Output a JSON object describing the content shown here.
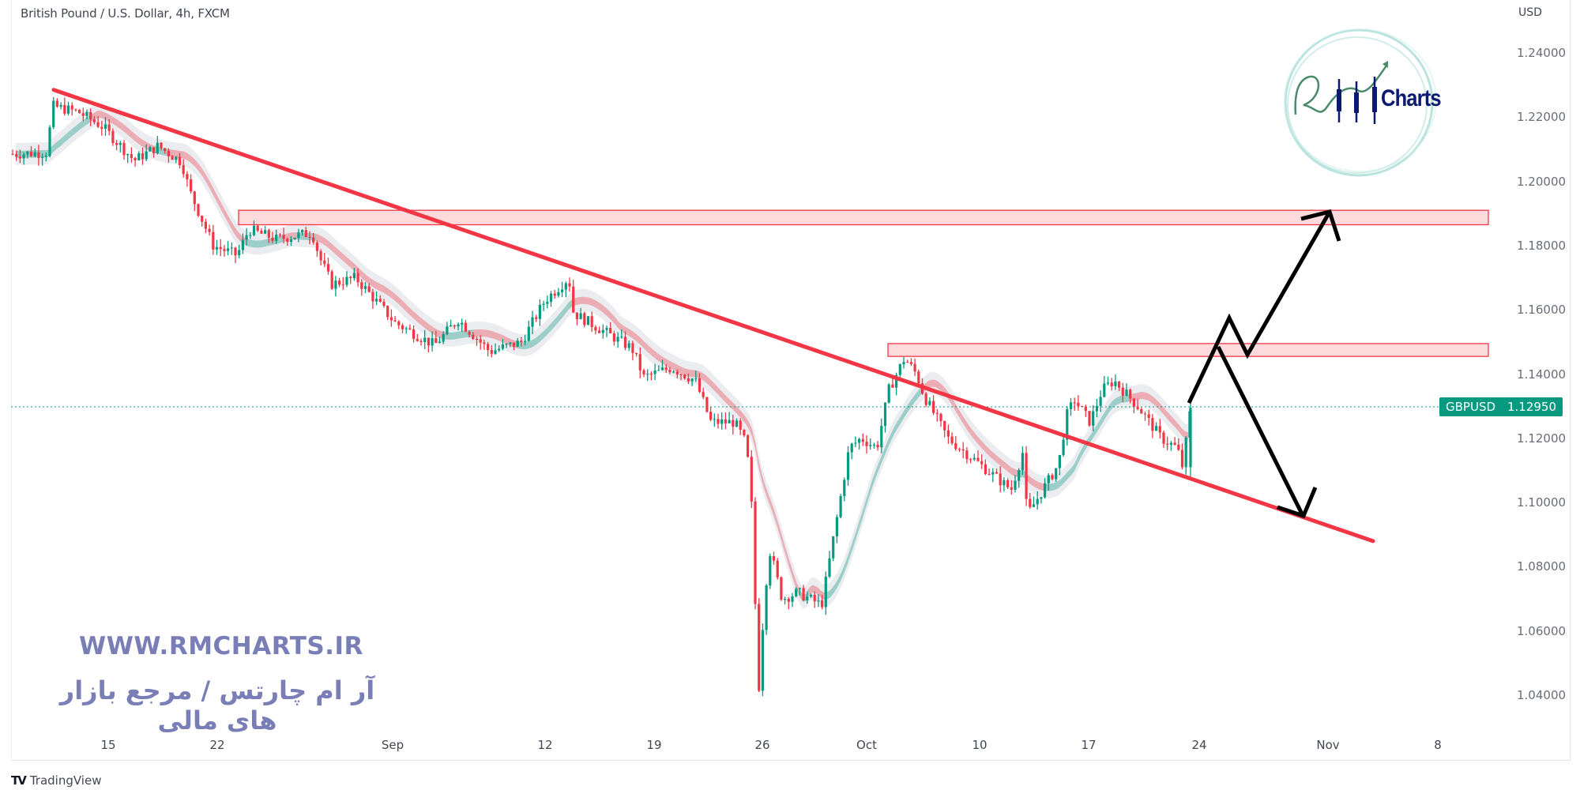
{
  "header": {
    "title": "British Pound / U.S. Dollar, 4h, FXCM",
    "currency": "USD"
  },
  "price_tag": {
    "symbol": "GBPUSD",
    "value": "1.12950",
    "color": "#089981"
  },
  "branding": {
    "logo_text": "Charts",
    "watermark_url": "WWW.RMCHARTS.IR",
    "watermark_fa": "آر ام چارتس / مرجع بازار های مالی",
    "tradingview": "TradingView"
  },
  "colors": {
    "up": "#089981",
    "down": "#f23645",
    "trendline": "#f23645",
    "zone_fill": "rgba(242,54,69,0.18)",
    "zone_border": "#f23645",
    "arrows": "#000000",
    "watermark": "#7a7eb6"
  },
  "chart_data": {
    "type": "candlestick",
    "title": "British Pound / U.S. Dollar, 4h, FXCM",
    "symbol": "GBPUSD",
    "timeframe": "4h",
    "last_price": 1.1295,
    "ylabel": "USD",
    "ylim": [
      1.032,
      1.255
    ],
    "y_ticks": [
      "1.24000",
      "1.22000",
      "1.20000",
      "1.18000",
      "1.16000",
      "1.14000",
      "1.12000",
      "1.10000",
      "1.08000",
      "1.06000",
      "1.04000"
    ],
    "x_ticks": [
      "15",
      "22",
      "Sep",
      "12",
      "19",
      "26",
      "Oct",
      "10",
      "17",
      "24",
      "Nov",
      "8"
    ],
    "grid": false,
    "price_path": [
      [
        14,
        1.2085
      ],
      [
        60,
        1.209
      ],
      [
        66,
        1.2235
      ],
      [
        100,
        1.2215
      ],
      [
        130,
        1.217
      ],
      [
        170,
        1.2065
      ],
      [
        200,
        1.211
      ],
      [
        230,
        1.206
      ],
      [
        240,
        1.197
      ],
      [
        270,
        1.18
      ],
      [
        300,
        1.177
      ],
      [
        315,
        1.185
      ],
      [
        350,
        1.182
      ],
      [
        395,
        1.184
      ],
      [
        405,
        1.176
      ],
      [
        420,
        1.168
      ],
      [
        450,
        1.17
      ],
      [
        500,
        1.156
      ],
      [
        550,
        1.149
      ],
      [
        580,
        1.157
      ],
      [
        620,
        1.147
      ],
      [
        660,
        1.15
      ],
      [
        690,
        1.163
      ],
      [
        720,
        1.17
      ],
      [
        726,
        1.159
      ],
      [
        760,
        1.154
      ],
      [
        800,
        1.148
      ],
      [
        815,
        1.139
      ],
      [
        850,
        1.142
      ],
      [
        880,
        1.138
      ],
      [
        900,
        1.125
      ],
      [
        930,
        1.125
      ],
      [
        945,
        1.118
      ],
      [
        952,
        1.097
      ],
      [
        960,
        1.04
      ],
      [
        968,
        1.072
      ],
      [
        975,
        1.085
      ],
      [
        990,
        1.07
      ],
      [
        1010,
        1.072
      ],
      [
        1040,
        1.068
      ],
      [
        1055,
        1.089
      ],
      [
        1075,
        1.117
      ],
      [
        1090,
        1.12
      ],
      [
        1110,
        1.117
      ],
      [
        1125,
        1.135
      ],
      [
        1145,
        1.145
      ],
      [
        1160,
        1.14
      ],
      [
        1170,
        1.133
      ],
      [
        1200,
        1.12
      ],
      [
        1240,
        1.112
      ],
      [
        1280,
        1.104
      ],
      [
        1295,
        1.116
      ],
      [
        1300,
        1.096
      ],
      [
        1330,
        1.108
      ],
      [
        1340,
        1.112
      ],
      [
        1350,
        1.127
      ],
      [
        1360,
        1.132
      ],
      [
        1380,
        1.125
      ],
      [
        1395,
        1.135
      ],
      [
        1410,
        1.138
      ],
      [
        1440,
        1.13
      ],
      [
        1470,
        1.12
      ],
      [
        1490,
        1.117
      ],
      [
        1497,
        1.111
      ],
      [
        1507,
        1.1295
      ]
    ],
    "annotations": {
      "trendline": {
        "from": [
          68,
          1.2285
        ],
        "to": [
          1738,
          1.088
        ],
        "label": "descending trendline"
      },
      "resistance_zones": [
        {
          "x_from": 302,
          "x_to": 1884,
          "price_top": 1.191,
          "price_bottom": 1.1865
        },
        {
          "x_from": 1124,
          "x_to": 1884,
          "price_top": 1.1495,
          "price_bottom": 1.1455
        }
      ],
      "bullish_scenario_path": [
        [
          1505,
          1.131
        ],
        [
          1556,
          1.1575
        ],
        [
          1579,
          1.146
        ],
        [
          1683,
          1.1905
        ]
      ],
      "bearish_scenario_path": [
        [
          1542,
          1.1485
        ],
        [
          1650,
          1.0955
        ]
      ]
    }
  }
}
